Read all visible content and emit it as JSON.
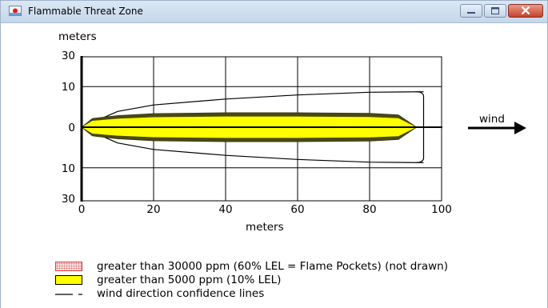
{
  "window": {
    "title": "Flammable Threat Zone"
  },
  "chart_data": {
    "type": "area",
    "ylabel": "meters",
    "xlabel": "meters",
    "xlim": [
      0,
      100
    ],
    "ylim": [
      -30,
      30
    ],
    "y_scale": "sqrt",
    "x_ticks": [
      "0",
      "20",
      "40",
      "60",
      "80",
      "100"
    ],
    "y_ticks": [
      {
        "value": 30,
        "label": "30"
      },
      {
        "value": 10,
        "label": "10"
      },
      {
        "value": 0,
        "label": "0"
      },
      {
        "value": -10,
        "label": "10"
      },
      {
        "value": -30,
        "label": "30"
      }
    ],
    "grid": true,
    "series": [
      {
        "name": "greater than 5000 ppm (10% LEL)",
        "color": "#ffff00",
        "x": [
          0,
          3,
          10,
          20,
          40,
          60,
          80,
          88,
          93
        ],
        "half_width": [
          0,
          0.45,
          0.8,
          1.1,
          1.25,
          1.25,
          1.15,
          0.9,
          0
        ]
      },
      {
        "name": "wind direction confidence lines",
        "color": "#000000",
        "x": [
          0,
          10,
          20,
          40,
          60,
          80,
          95
        ],
        "half_width": [
          0,
          1.5,
          3.0,
          4.8,
          6.3,
          7.4,
          7.6
        ]
      }
    ],
    "annotation": "wind"
  },
  "legend": {
    "items": [
      {
        "label": "greater than 30000 ppm (60% LEL = Flame Pockets) (not drawn)",
        "swatch": "pockets"
      },
      {
        "label": "greater than 5000 ppm (10% LEL)",
        "swatch": "lel"
      },
      {
        "label": "wind direction confidence lines",
        "swatch": "lines"
      }
    ]
  },
  "colors": {
    "zone_fill": "#ffff00",
    "pockets_fill": "#fbe3e3",
    "pockets_border": "#d04040",
    "close_button": "#c6422c"
  },
  "icons": [
    "app-icon",
    "minimize-icon",
    "maximize-icon",
    "close-icon",
    "wind-arrow-icon"
  ]
}
